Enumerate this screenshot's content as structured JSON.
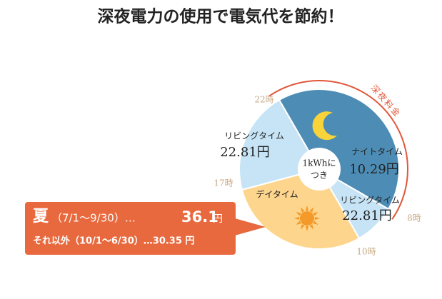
{
  "title": "深夜電力の使用で電気代を節約！",
  "clock": {
    "hours": [
      {
        "value": 22,
        "label": "22時"
      },
      {
        "value": 8,
        "label": "8時"
      },
      {
        "value": 10,
        "label": "10時"
      },
      {
        "value": 17,
        "label": "17時"
      }
    ],
    "segments": [
      {
        "label": "ナイトタイム",
        "price": "10.29円",
        "color": "#4d8db5"
      },
      {
        "label": "リビングタイム",
        "price": "22.81円",
        "color": "#c6e4f6"
      },
      {
        "label": "デイタイム",
        "color": "#fdd58c"
      },
      {
        "label": "リビングタイム",
        "price": "22.81円",
        "color": "#c6e4f6"
      }
    ],
    "center_label": [
      "1kWhに",
      "つき"
    ],
    "night_rate_label": "深夜料金"
  },
  "callout": {
    "season": "夏",
    "period": "（7/1～9/30）…",
    "price": "36.1",
    "unit": "円",
    "other": "それ以外（10/1～6/30）…30.35 円"
  }
}
